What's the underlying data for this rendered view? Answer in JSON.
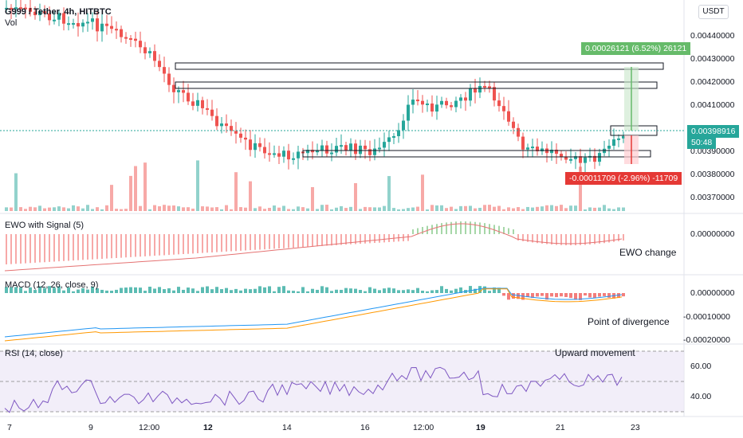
{
  "header": {
    "symbol_line": "G999 / Tether, 4h, HITBTC",
    "volume_label": "Vol",
    "currency_button": "USDT"
  },
  "price_axis": {
    "ticks": [
      "0.00440000",
      "0.00430000",
      "0.00420000",
      "0.00410000",
      "0.00390000",
      "0.00380000",
      "0.00370000"
    ],
    "current_price": "0.00398916",
    "countdown": "50:48"
  },
  "measure_up": {
    "text": "0.00026121 (6.52%) 26121",
    "color": "#66bb6a"
  },
  "measure_down": {
    "text": "-0.00011709 (-2.96%) -11709",
    "color": "#e53935"
  },
  "ewo": {
    "title": "EWO with Signal (5)",
    "axis": "0.00000000",
    "annotation": "EWO change"
  },
  "macd": {
    "title": "MACD (12, 26, close, 9)",
    "axis": [
      "0.00000000",
      "-0.00010000",
      "-0.00020000"
    ],
    "annotation": "Point of divergence"
  },
  "rsi": {
    "title": "RSI (14, close)",
    "axis": [
      "60.00",
      "40.00"
    ],
    "annotation": "Upward movement"
  },
  "time_axis": [
    "7",
    "9",
    "12:00",
    "12",
    "14",
    "16",
    "12:00",
    "19",
    "21",
    "23"
  ],
  "colors": {
    "up": "#26a69a",
    "down": "#ef5350",
    "ma_blue": "#2196f3",
    "ma_orange": "#ff9800",
    "rsi": "#7e57c2"
  }
}
